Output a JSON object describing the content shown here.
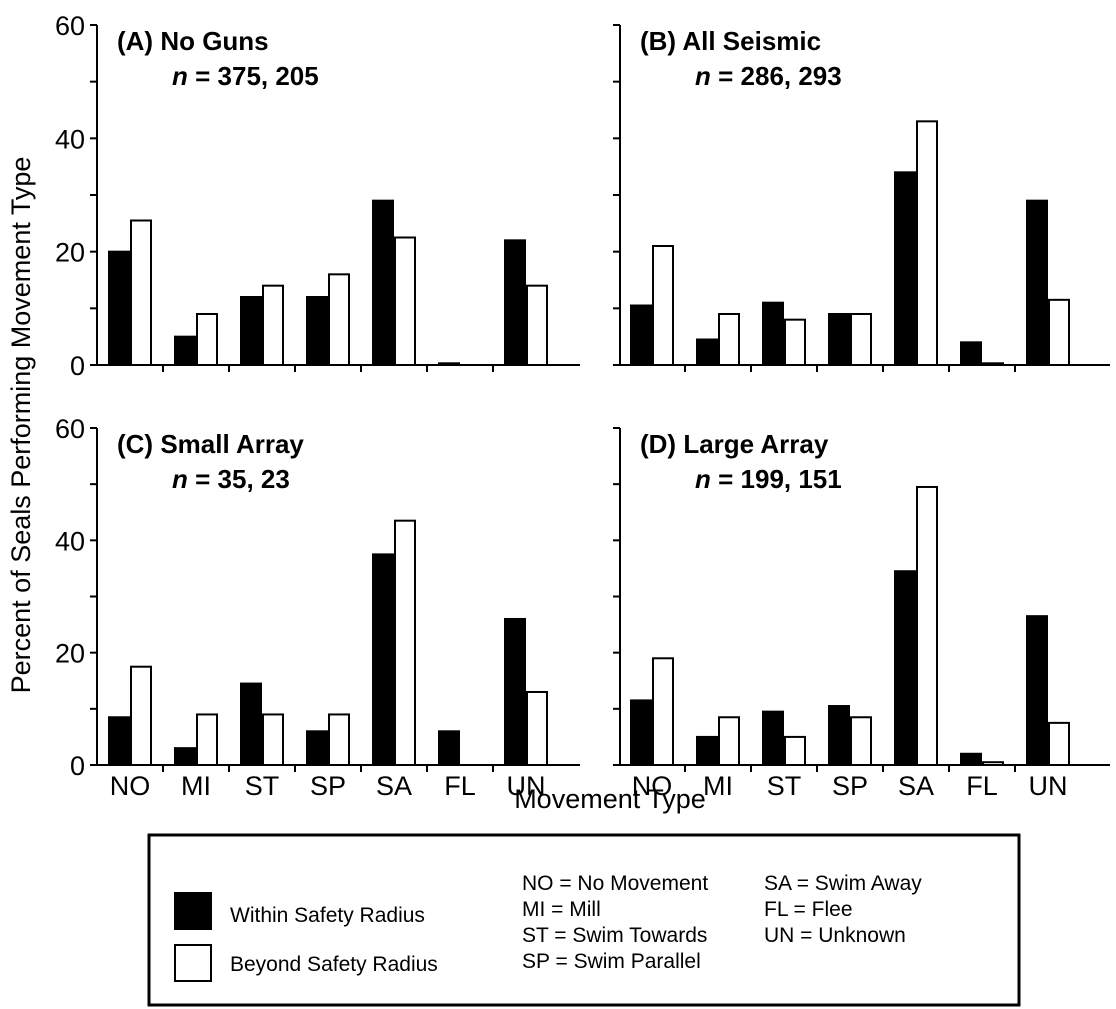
{
  "chart_data": {
    "type": "bar",
    "ylabel": "Percent of Seals Performing Movement Type",
    "xlabel": "Movement Type",
    "categories": [
      "NO",
      "MI",
      "ST",
      "SP",
      "SA",
      "FL",
      "UN"
    ],
    "ylim": [
      0,
      60
    ],
    "y_ticks": [
      "0",
      "20",
      "40",
      "60"
    ],
    "panels": [
      {
        "label": "(A) No Guns",
        "n_prefix": "n",
        "n_text": " = 375, 205",
        "series": [
          {
            "name": "Within Safety Radius",
            "values": [
              20,
              5,
              12,
              12,
              29,
              0.3,
              22
            ]
          },
          {
            "name": "Beyond Safety Radius",
            "values": [
              25.5,
              9,
              14,
              16,
              22.5,
              0,
              14
            ]
          }
        ]
      },
      {
        "label": "(B) All Seismic",
        "n_prefix": "n",
        "n_text": " = 286, 293",
        "series": [
          {
            "name": "Within Safety Radius",
            "values": [
              10.5,
              4.5,
              11,
              9,
              34,
              4,
              29
            ]
          },
          {
            "name": "Beyond Safety Radius",
            "values": [
              21,
              9,
              8,
              9,
              43,
              0.3,
              11.5
            ]
          }
        ]
      },
      {
        "label": "(C) Small Array",
        "n_prefix": "n",
        "n_text": " = 35, 23",
        "series": [
          {
            "name": "Within Safety Radius",
            "values": [
              8.5,
              3,
              14.5,
              6,
              37.5,
              6,
              26
            ]
          },
          {
            "name": "Beyond Safety Radius",
            "values": [
              17.5,
              9,
              9,
              9,
              43.5,
              0,
              13
            ]
          }
        ]
      },
      {
        "label": "(D) Large Array",
        "n_prefix": "n",
        "n_text": " = 199, 151",
        "series": [
          {
            "name": "Within Safety Radius",
            "values": [
              11.5,
              5,
              9.5,
              10.5,
              34.5,
              2,
              26.5
            ]
          },
          {
            "name": "Beyond Safety Radius",
            "values": [
              19,
              8.5,
              5,
              8.5,
              49.5,
              0.5,
              7.5
            ]
          }
        ]
      }
    ],
    "legend": {
      "placement": "bottom",
      "series": [
        {
          "name": "Within Safety Radius",
          "color": "#000000"
        },
        {
          "name": "Beyond Safety Radius",
          "color": "#ffffff"
        }
      ],
      "definitions": [
        "NO = No Movement",
        "MI = Mill",
        "ST = Swim Towards",
        "SP = Swim Parallel",
        "SA = Swim Away",
        "FL = Flee",
        "UN = Unknown"
      ]
    }
  }
}
